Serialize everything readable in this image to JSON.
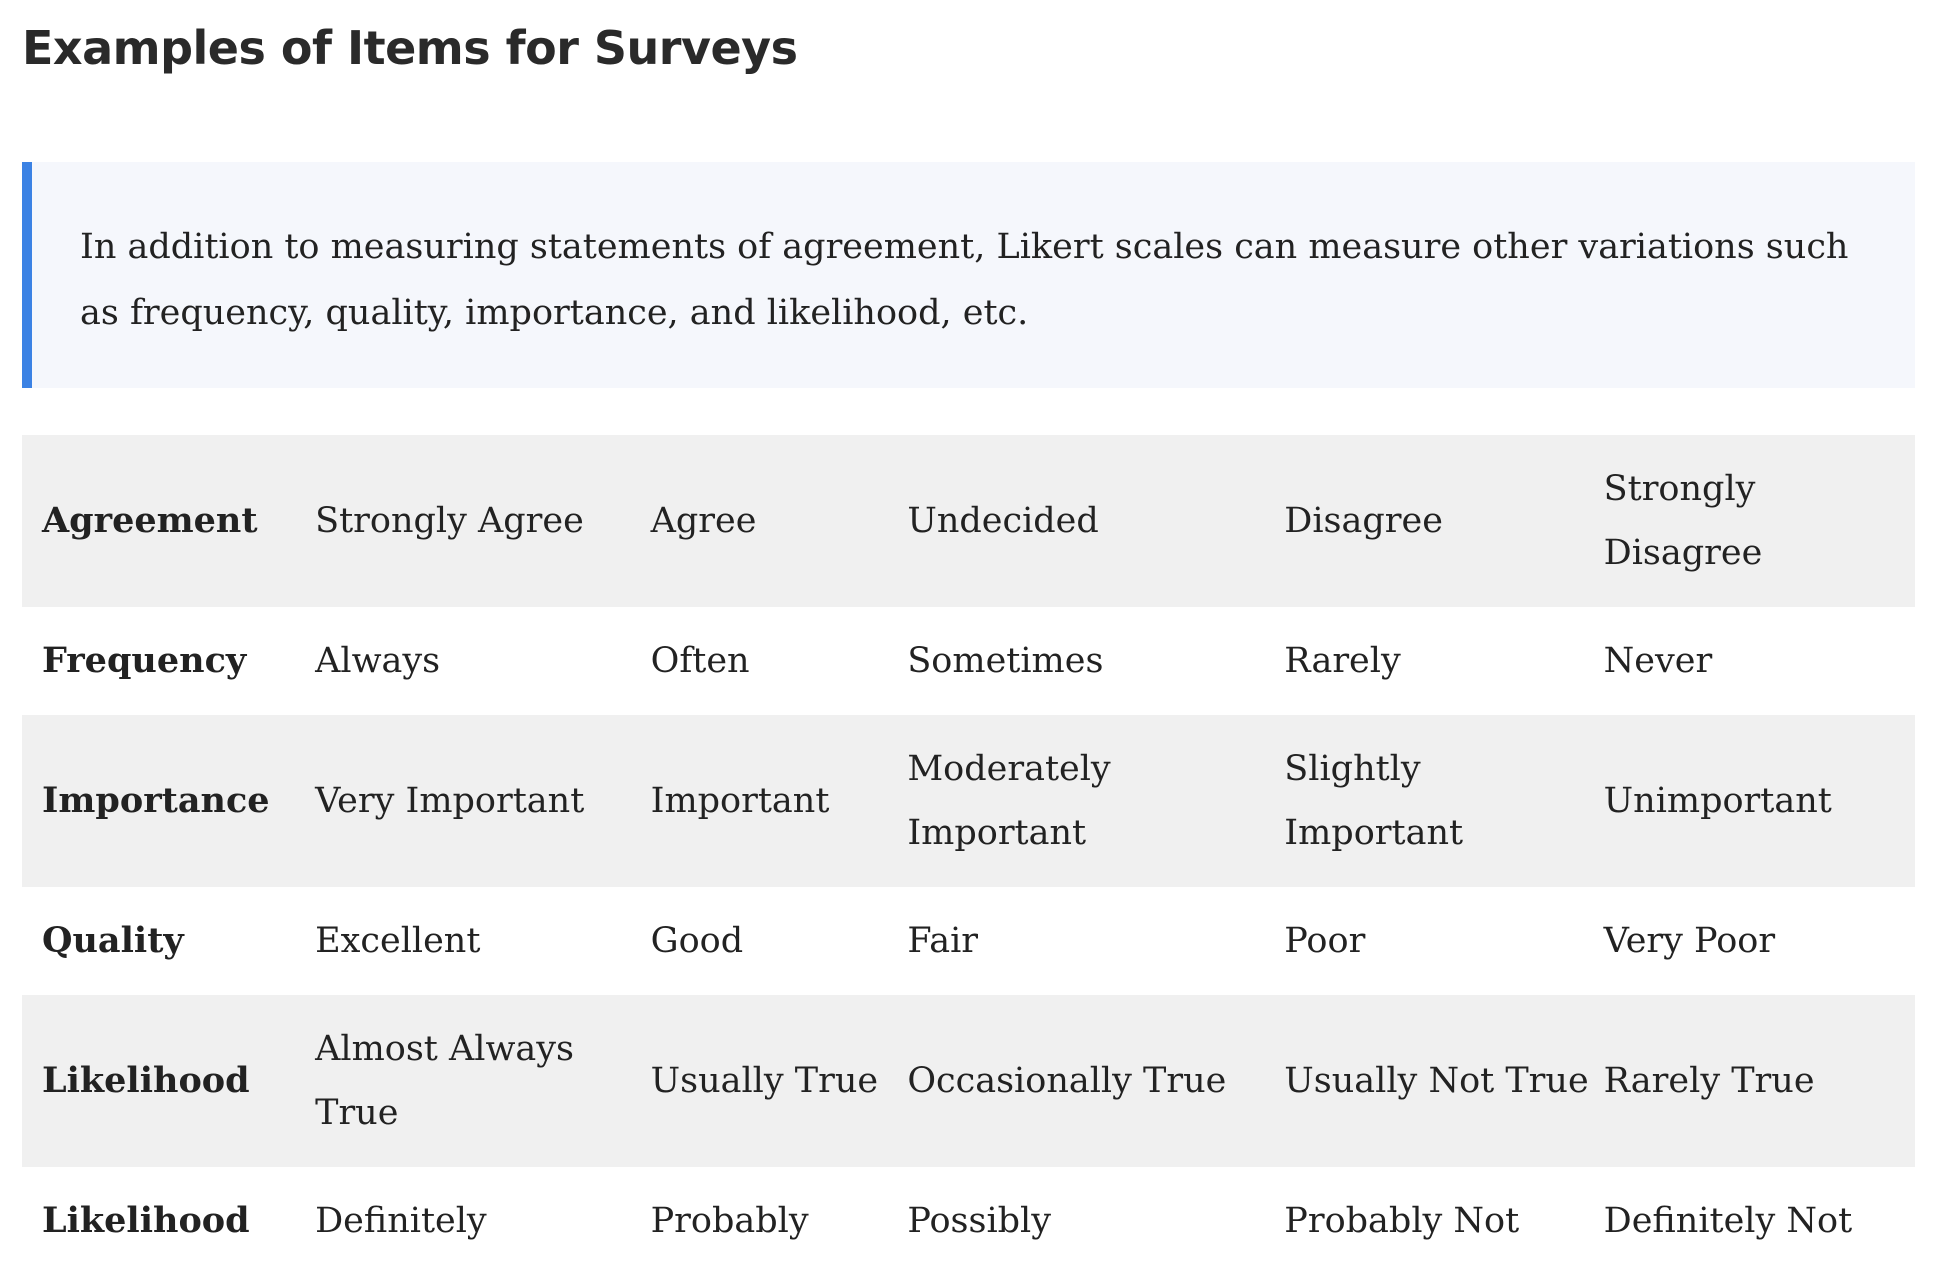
{
  "heading": "Examples of Items for Surveys",
  "callout": {
    "text": "In addition to measuring statements of agreement, Likert scales can measure other variations such as frequency, quality, importance, and likelihood, etc.",
    "accent_color": "#3b82e4",
    "background_color": "#f5f7fc"
  },
  "table": {
    "rows": [
      {
        "label": "Agreement",
        "cells": [
          "Strongly Agree",
          "Agree",
          "Undecided",
          "Disagree",
          "Strongly Disagree"
        ]
      },
      {
        "label": "Frequency",
        "cells": [
          "Always",
          "Often",
          "Sometimes",
          "Rarely",
          "Never"
        ]
      },
      {
        "label": "Importance",
        "cells": [
          "Very Important",
          "Important",
          "Moderately Important",
          "Slightly Important",
          "Unimportant"
        ]
      },
      {
        "label": "Quality",
        "cells": [
          "Excellent",
          "Good",
          "Fair",
          "Poor",
          "Very Poor"
        ]
      },
      {
        "label": "Likelihood",
        "cells": [
          "Almost Always True",
          "Usually True",
          "Occasionally True",
          "Usually Not True",
          "Rarely True"
        ]
      },
      {
        "label": "Likelihood",
        "cells": [
          "Definitely",
          "Probably",
          "Possibly",
          "Probably Not",
          "Definitely Not"
        ]
      }
    ]
  }
}
